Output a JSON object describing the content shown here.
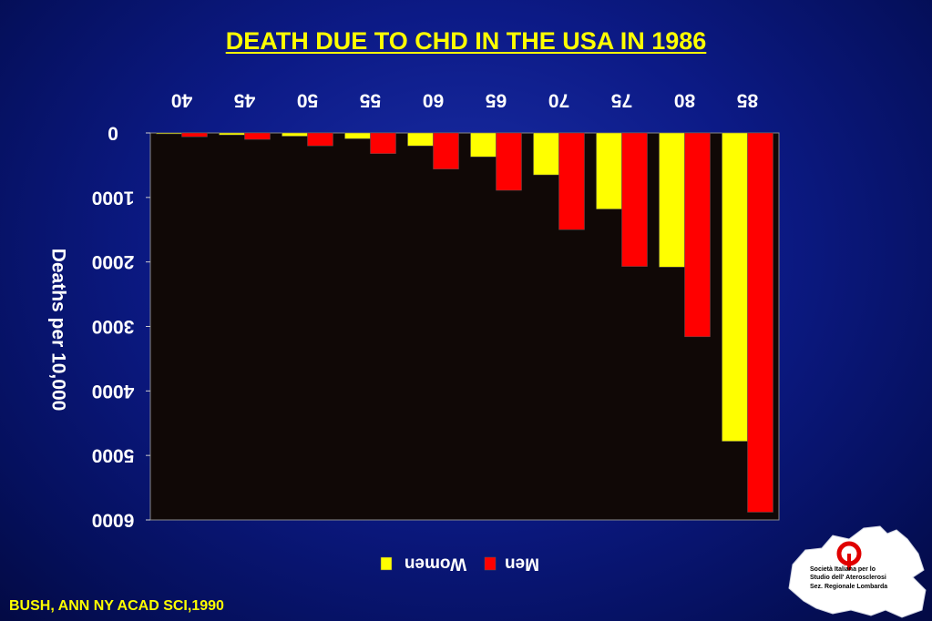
{
  "title": "DEATH DUE TO CHD IN THE USA IN 1986",
  "citation": "BUSH, ANN NY ACAD SCI,1990",
  "logo": {
    "line1": "Società Italiana per lo",
    "line2": "Studio dell' Aterosclerosi",
    "line3": "Sez. Regionale Lombarda"
  },
  "colors": {
    "women": "#ffff00",
    "men": "#ff0000",
    "plot_bg": "#100806",
    "title": "#ffff00"
  },
  "chart_data": {
    "type": "bar",
    "title": "DEATH DUE TO CHD IN THE USA IN 1986",
    "xlabel": "",
    "ylabel": "Deaths per 10,000",
    "categories": [
      "40",
      "45",
      "50",
      "55",
      "60",
      "65",
      "70",
      "75",
      "80",
      "85"
    ],
    "series": [
      {
        "name": "Women",
        "values": [
          10,
          30,
          50,
          90,
          200,
          370,
          650,
          1180,
          2080,
          4780
        ]
      },
      {
        "name": "Men",
        "values": [
          60,
          100,
          200,
          320,
          560,
          890,
          1500,
          2070,
          3160,
          5880
        ]
      }
    ],
    "ylim": [
      0,
      6000
    ],
    "yticks": [
      "0",
      "1000",
      "2000",
      "3000",
      "4000",
      "5000",
      "6000"
    ],
    "orientation": "mirrored (rendered upside-down and reversed)",
    "legend_position": "bottom",
    "grid": false
  }
}
